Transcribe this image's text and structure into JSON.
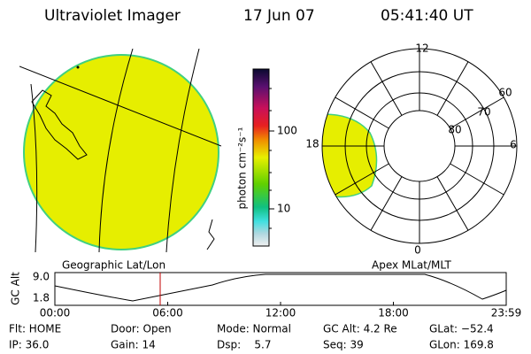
{
  "header": {
    "title": "Ultraviolet Imager",
    "date": "17 Jun 07",
    "time": "05:41:40 UT"
  },
  "colorbar": {
    "unit": "photon cm⁻²s⁻¹",
    "labels": [
      "100",
      "10"
    ]
  },
  "polar": {
    "lat_labels": [
      "60",
      "70",
      "80"
    ],
    "mlt_labels": [
      "12",
      "6",
      "0",
      "18"
    ]
  },
  "projections": {
    "left": "Geographic Lat/Lon",
    "right": "Apex MLat/MLT"
  },
  "alt_plot": {
    "axis_label": "GC Alt",
    "yticks": [
      "9.0",
      "1.8"
    ],
    "xticks": [
      "00:00",
      "06:00",
      "12:00",
      "18:00",
      "23:59"
    ]
  },
  "info": {
    "rows": [
      [
        "Flt: HOME",
        "Door: Open",
        "Mode: Normal",
        "GC Alt: 4.2 Re",
        "GLat: −52.4"
      ],
      [
        "IP: 36.0",
        "Gain: 14",
        "Dsp:    5.7",
        "Seq: 39",
        "GLon: 169.8"
      ]
    ]
  }
}
